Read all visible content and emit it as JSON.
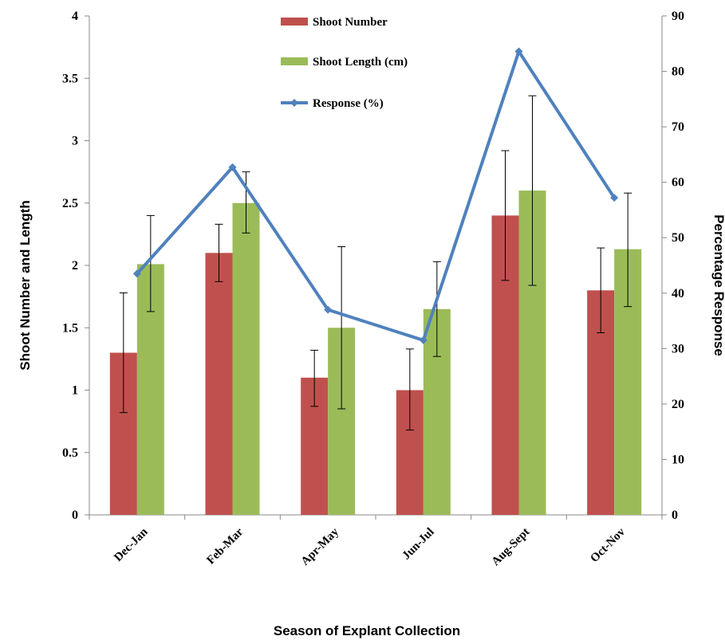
{
  "chart_data": {
    "type": "bar",
    "xlabel": "Season of Explant Collection",
    "ylabel": "Shoot Number and Length",
    "y2label": "Percentage Response",
    "ylim": [
      0,
      4
    ],
    "y2lim": [
      0,
      90
    ],
    "yticks": [
      "0",
      "0.5",
      "1",
      "1.5",
      "2",
      "2.5",
      "3",
      "3.5",
      "4"
    ],
    "y2ticks": [
      "0",
      "10",
      "20",
      "30",
      "40",
      "50",
      "60",
      "70",
      "80",
      "90"
    ],
    "categories": [
      "Dec-Jan",
      "Feb-Mar",
      "Apr-May",
      "Jun-Jul",
      "Aug-Sept",
      "Oct-Nov"
    ],
    "legend_position": "top-center",
    "series": [
      {
        "name": "Shoot Number",
        "type": "bar",
        "axis": "left",
        "color": "#C0504D",
        "values": [
          1.3,
          2.1,
          1.1,
          1.0,
          2.4,
          1.8
        ],
        "error_low": [
          0.82,
          1.87,
          0.87,
          0.68,
          1.88,
          1.46
        ],
        "error_high": [
          1.78,
          2.33,
          1.32,
          1.33,
          2.92,
          2.14
        ]
      },
      {
        "name": "Shoot Length (cm)",
        "type": "bar",
        "axis": "left",
        "color": "#9BBB59",
        "values": [
          2.01,
          2.5,
          1.5,
          1.65,
          2.6,
          2.13
        ],
        "error_low": [
          1.63,
          2.26,
          0.85,
          1.27,
          1.84,
          1.67
        ],
        "error_high": [
          2.4,
          2.75,
          2.15,
          2.03,
          3.36,
          2.58
        ]
      },
      {
        "name": "Response (%)",
        "type": "line",
        "axis": "right",
        "color": "#4F81BD",
        "values": [
          43.5,
          62.7,
          37.0,
          31.5,
          83.6,
          57.2
        ]
      }
    ]
  }
}
